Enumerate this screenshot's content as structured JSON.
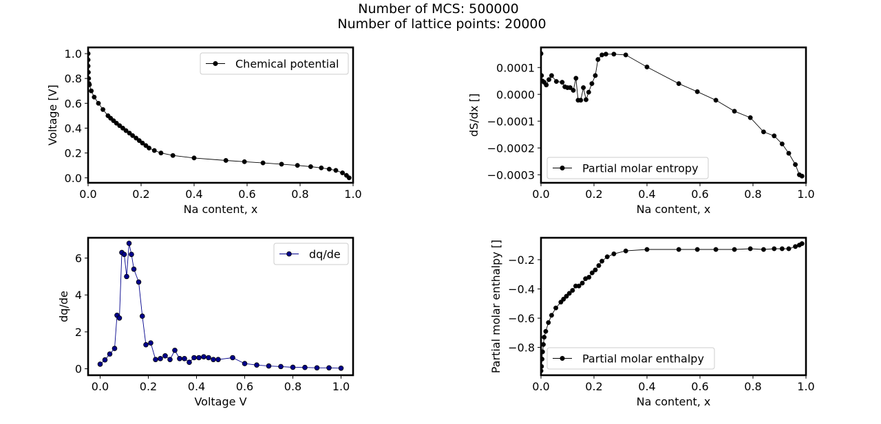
{
  "figure": {
    "title_line1": "Number of MCS: 500000",
    "title_line2": "Number of lattice points: 20000"
  },
  "chart_data": [
    {
      "type": "line",
      "xlabel": "Na content, x",
      "ylabel": "Voltage [V]",
      "xlim": [
        0,
        1
      ],
      "ylim": [
        -0.04,
        1.05
      ],
      "xticks": [
        0.0,
        0.2,
        0.4,
        0.6,
        0.8,
        1.0
      ],
      "yticks": [
        0.0,
        0.2,
        0.4,
        0.6,
        0.8,
        1.0
      ],
      "xtick_labels": [
        "0.0",
        "0.2",
        "0.4",
        "0.6",
        "0.8",
        "1.0"
      ],
      "ytick_labels": [
        "0.0",
        "0.2",
        "0.4",
        "0.6",
        "0.8",
        "1.0"
      ],
      "legend_position": "upper right",
      "color": "#000000",
      "series": [
        {
          "name": "Chemical potential",
          "x": [
            0.0,
            0.0,
            0.0,
            0.001,
            0.002,
            0.003,
            0.005,
            0.012,
            0.023,
            0.039,
            0.056,
            0.075,
            0.085,
            0.096,
            0.107,
            0.119,
            0.131,
            0.143,
            0.156,
            0.168,
            0.181,
            0.193,
            0.205,
            0.218,
            0.23,
            0.25,
            0.275,
            0.32,
            0.4,
            0.52,
            0.59,
            0.66,
            0.73,
            0.79,
            0.84,
            0.88,
            0.91,
            0.935,
            0.96,
            0.975,
            0.985
          ],
          "y": [
            1.0,
            0.95,
            0.9,
            0.85,
            0.8,
            0.76,
            0.75,
            0.7,
            0.65,
            0.6,
            0.55,
            0.5,
            0.48,
            0.46,
            0.44,
            0.42,
            0.4,
            0.38,
            0.36,
            0.34,
            0.32,
            0.3,
            0.28,
            0.26,
            0.24,
            0.22,
            0.2,
            0.18,
            0.16,
            0.14,
            0.13,
            0.12,
            0.11,
            0.1,
            0.09,
            0.08,
            0.07,
            0.06,
            0.04,
            0.02,
            0.0
          ]
        }
      ]
    },
    {
      "type": "line",
      "xlabel": "Na content, x",
      "ylabel": "dS/dx []",
      "xlim": [
        0,
        1
      ],
      "ylim": [
        -0.00033,
        0.000175
      ],
      "xticks": [
        0.0,
        0.2,
        0.4,
        0.6,
        0.8,
        1.0
      ],
      "yticks": [
        -0.0003,
        -0.0002,
        -0.0001,
        0.0,
        0.0001
      ],
      "xtick_labels": [
        "0.0",
        "0.2",
        "0.4",
        "0.6",
        "0.8",
        "1.0"
      ],
      "ytick_labels": [
        "−0.0003",
        "−0.0002",
        "−0.0001",
        "0.0000",
        "0.0001"
      ],
      "legend_position": "lower left",
      "color": "#000000",
      "series": [
        {
          "name": "Partial molar entropy",
          "x": [
            0.0,
            0.002,
            0.005,
            0.012,
            0.02,
            0.03,
            0.04,
            0.058,
            0.08,
            0.09,
            0.1,
            0.11,
            0.122,
            0.132,
            0.14,
            0.15,
            0.16,
            0.17,
            0.18,
            0.192,
            0.205,
            0.215,
            0.23,
            0.245,
            0.275,
            0.32,
            0.4,
            0.52,
            0.59,
            0.66,
            0.73,
            0.79,
            0.84,
            0.88,
            0.91,
            0.935,
            0.96,
            0.975,
            0.985
          ],
          "y": [
            0.000152,
            7e-05,
            5e-05,
            4.5e-05,
            3.5e-05,
            5.5e-05,
            7e-05,
            4.8e-05,
            4.5e-05,
            2.8e-05,
            2.5e-05,
            2.5e-05,
            1.5e-05,
            6e-05,
            -2.2e-05,
            -2.2e-05,
            2.5e-05,
            -2e-05,
            8e-06,
            4e-05,
            7e-05,
            0.00013,
            0.000147,
            0.00015,
            0.00015,
            0.000147,
            0.000102,
            4e-05,
            1e-05,
            -2.2e-05,
            -6.3e-05,
            -8.7e-05,
            -0.00014,
            -0.000155,
            -0.000185,
            -0.00022,
            -0.000262,
            -0.0003,
            -0.000305
          ]
        }
      ]
    },
    {
      "type": "line",
      "xlabel": "Voltage V",
      "ylabel": "dq/de",
      "xlim": [
        -0.05,
        1.05
      ],
      "ylim": [
        -0.35,
        7.1
      ],
      "xticks": [
        0.0,
        0.2,
        0.4,
        0.6,
        0.8,
        1.0
      ],
      "yticks": [
        0,
        2,
        4,
        6
      ],
      "xtick_labels": [
        "0.0",
        "0.2",
        "0.4",
        "0.6",
        "0.8",
        "1.0"
      ],
      "ytick_labels": [
        "0",
        "2",
        "4",
        "6"
      ],
      "legend_position": "upper right",
      "color": "#00008b",
      "series": [
        {
          "name": "dq/de",
          "x": [
            0.0,
            0.02,
            0.04,
            0.06,
            0.07,
            0.08,
            0.09,
            0.1,
            0.11,
            0.12,
            0.13,
            0.14,
            0.16,
            0.175,
            0.19,
            0.21,
            0.23,
            0.25,
            0.27,
            0.29,
            0.31,
            0.33,
            0.35,
            0.37,
            0.39,
            0.41,
            0.43,
            0.45,
            0.47,
            0.49,
            0.55,
            0.6,
            0.65,
            0.7,
            0.75,
            0.8,
            0.85,
            0.9,
            0.95,
            1.0
          ],
          "y": [
            0.25,
            0.48,
            0.8,
            1.1,
            2.9,
            2.75,
            6.3,
            6.2,
            5.0,
            6.8,
            6.2,
            5.4,
            4.7,
            2.85,
            1.3,
            1.4,
            0.5,
            0.55,
            0.7,
            0.5,
            1.0,
            0.55,
            0.55,
            0.35,
            0.6,
            0.6,
            0.65,
            0.6,
            0.5,
            0.5,
            0.6,
            0.28,
            0.2,
            0.15,
            0.12,
            0.08,
            0.07,
            0.05,
            0.05,
            0.03
          ]
        }
      ]
    },
    {
      "type": "line",
      "xlabel": "Na content, x",
      "ylabel": "Partial molar enthalpy []",
      "xlim": [
        0,
        1
      ],
      "ylim": [
        -0.99,
        -0.05
      ],
      "xticks": [
        0.0,
        0.2,
        0.4,
        0.6,
        0.8,
        1.0
      ],
      "yticks": [
        -0.8,
        -0.6,
        -0.4,
        -0.2
      ],
      "xtick_labels": [
        "0.0",
        "0.2",
        "0.4",
        "0.6",
        "0.8",
        "1.0"
      ],
      "ytick_labels": [
        "−0.8",
        "−0.6",
        "−0.4",
        "−0.2"
      ],
      "legend_position": "lower right",
      "color": "#000000",
      "series": [
        {
          "name": "Partial molar enthalpy",
          "x": [
            0.0,
            0.002,
            0.004,
            0.006,
            0.009,
            0.012,
            0.018,
            0.028,
            0.04,
            0.056,
            0.075,
            0.085,
            0.096,
            0.107,
            0.119,
            0.131,
            0.143,
            0.156,
            0.168,
            0.181,
            0.193,
            0.205,
            0.218,
            0.23,
            0.25,
            0.275,
            0.32,
            0.4,
            0.52,
            0.59,
            0.66,
            0.73,
            0.79,
            0.84,
            0.88,
            0.91,
            0.935,
            0.96,
            0.975,
            0.985
          ],
          "y": [
            -0.96,
            -0.93,
            -0.88,
            -0.83,
            -0.78,
            -0.73,
            -0.69,
            -0.63,
            -0.58,
            -0.53,
            -0.49,
            -0.47,
            -0.45,
            -0.43,
            -0.41,
            -0.38,
            -0.38,
            -0.36,
            -0.33,
            -0.32,
            -0.29,
            -0.27,
            -0.24,
            -0.21,
            -0.18,
            -0.16,
            -0.14,
            -0.13,
            -0.13,
            -0.13,
            -0.13,
            -0.13,
            -0.125,
            -0.13,
            -0.125,
            -0.125,
            -0.125,
            -0.11,
            -0.1,
            -0.09
          ]
        }
      ]
    }
  ]
}
